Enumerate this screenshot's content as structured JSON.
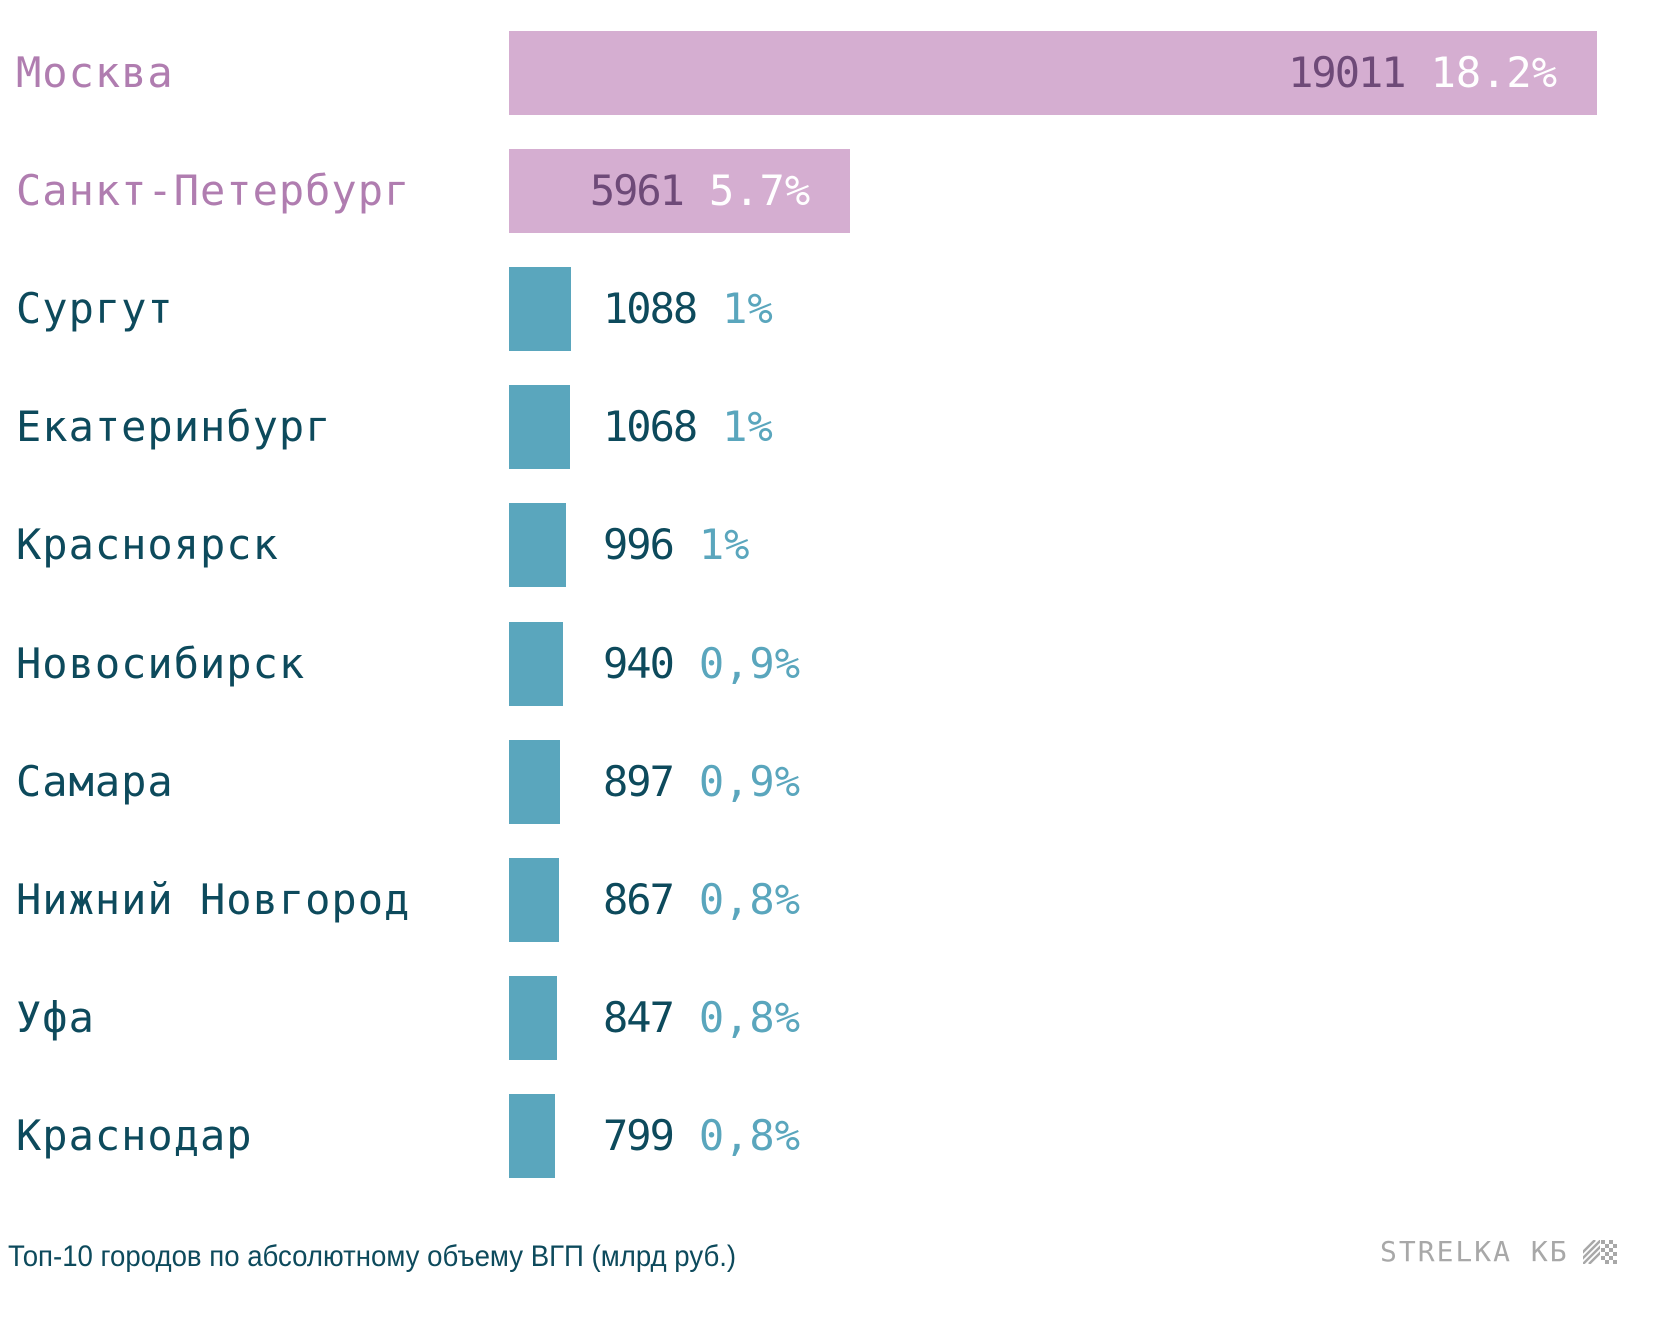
{
  "colors": {
    "highlight_bar": "#d5aed1",
    "highlight_label": "#b07db0",
    "highlight_value": "#6e4a78",
    "highlight_pct": "#ffffff",
    "normal_bar": "#5aa6bd",
    "normal_label": "#0d4a5c",
    "normal_value": "#0d4a5c",
    "normal_pct": "#5aa6bd",
    "logo": "#a8a8a8"
  },
  "chart_data": {
    "type": "bar",
    "orientation": "horizontal",
    "title": "Топ-10 городов по абсолютному объему ВГП (млрд руб.)",
    "xlabel": "",
    "ylabel": "",
    "grid": false,
    "categories": [
      "Москва",
      "Санкт-Петербург",
      "Сургут",
      "Екатеринбург",
      "Красноярск",
      "Новосибирск",
      "Самара",
      "Нижний Новгород",
      "Уфа",
      "Краснодар"
    ],
    "values": [
      19011,
      5961,
      1088,
      1068,
      996,
      940,
      897,
      867,
      847,
      799
    ],
    "value_labels": [
      "19011",
      "5961",
      "1088",
      "1068",
      "996",
      "940",
      "897",
      "867",
      "847",
      "799"
    ],
    "percent_labels": [
      "18.2%",
      "5.7%",
      "1%",
      "1%",
      "1%",
      "0,9%",
      "0,9%",
      "0,8%",
      "0,8%",
      "0,8%"
    ],
    "highlighted": [
      true,
      true,
      false,
      false,
      false,
      false,
      false,
      false,
      false,
      false
    ],
    "xlim": [
      0,
      19011
    ]
  },
  "footer": {
    "caption": "Топ-10 городов по абсолютному объему ВГП (млрд руб.)",
    "logo_text": "STRELKA КБ",
    "logo_icon": "striped-pattern-icon"
  }
}
